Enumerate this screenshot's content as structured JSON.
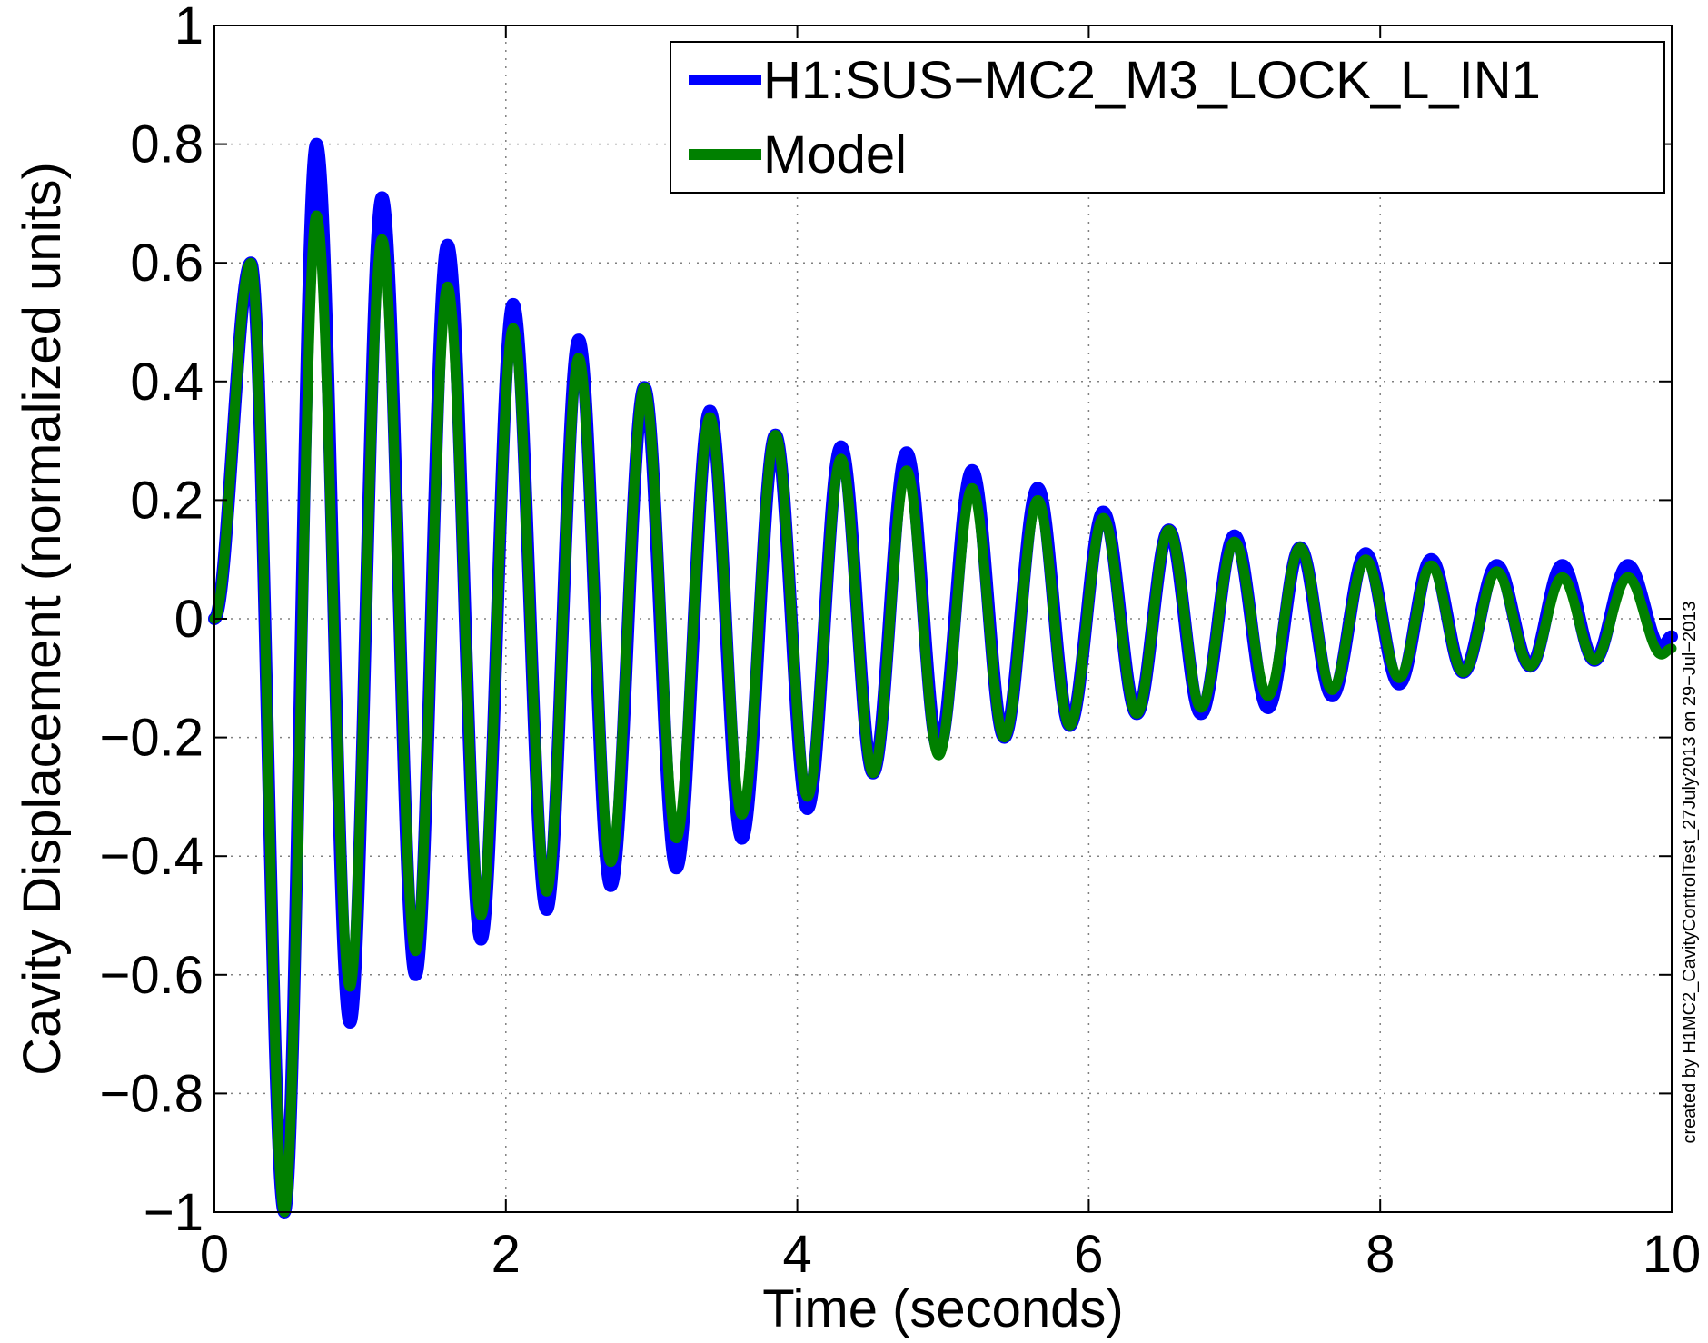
{
  "chart_data": {
    "type": "line",
    "title": "",
    "xlabel": "Time (seconds)",
    "ylabel": "Cavity Displacement (normalized units)",
    "xlim": [
      0,
      10
    ],
    "ylim": [
      -1,
      1
    ],
    "xticks": [
      0,
      2,
      4,
      6,
      8,
      10
    ],
    "xtick_labels": [
      "0",
      "2",
      "4",
      "6",
      "8",
      "10"
    ],
    "yticks": [
      1,
      0.8,
      0.6,
      0.4,
      0.2,
      0,
      -0.2,
      -0.4,
      -0.6,
      -0.8,
      -1
    ],
    "ytick_labels": [
      "1",
      "0.8",
      "0.6",
      "0.4",
      "0.2",
      "0",
      "−0.2",
      "−0.4",
      "−0.6",
      "−0.8",
      "−1"
    ],
    "grid": true,
    "legend_position": "top-right",
    "series": [
      {
        "name": "H1:SUS−MC2_M3_LOCK_L_IN1",
        "color": "#0000ff",
        "x": [
          0,
          0.25,
          0.48,
          0.7,
          0.93,
          1.15,
          1.38,
          1.6,
          1.83,
          2.05,
          2.28,
          2.5,
          2.72,
          2.95,
          3.17,
          3.4,
          3.62,
          3.85,
          4.07,
          4.3,
          4.52,
          4.75,
          4.97,
          5.2,
          5.42,
          5.65,
          5.87,
          6.1,
          6.33,
          6.55,
          6.77,
          7.0,
          7.23,
          7.45,
          7.67,
          7.9,
          8.13,
          8.35,
          8.57,
          8.8,
          9.03,
          9.25,
          9.47,
          9.7,
          9.93,
          10
        ],
        "y": [
          0,
          0.6,
          -1.0,
          0.8,
          -0.68,
          0.71,
          -0.6,
          0.63,
          -0.54,
          0.53,
          -0.49,
          0.47,
          -0.45,
          0.39,
          -0.42,
          0.35,
          -0.37,
          0.31,
          -0.32,
          0.29,
          -0.26,
          0.28,
          -0.22,
          0.25,
          -0.2,
          0.22,
          -0.18,
          0.18,
          -0.16,
          0.15,
          -0.16,
          0.14,
          -0.15,
          0.12,
          -0.13,
          0.11,
          -0.11,
          0.1,
          -0.09,
          0.09,
          -0.08,
          0.09,
          -0.07,
          0.09,
          -0.05,
          -0.03
        ]
      },
      {
        "name": "Model",
        "color": "#008000",
        "x": [
          0,
          0.25,
          0.48,
          0.7,
          0.93,
          1.15,
          1.38,
          1.6,
          1.83,
          2.05,
          2.28,
          2.5,
          2.72,
          2.95,
          3.17,
          3.4,
          3.62,
          3.85,
          4.07,
          4.3,
          4.52,
          4.75,
          4.97,
          5.2,
          5.42,
          5.65,
          5.87,
          6.1,
          6.33,
          6.55,
          6.77,
          7.0,
          7.23,
          7.45,
          7.67,
          7.9,
          8.13,
          8.35,
          8.57,
          8.8,
          9.03,
          9.25,
          9.47,
          9.7,
          9.93,
          10
        ],
        "y": [
          0,
          0.6,
          -1.0,
          0.68,
          -0.62,
          0.64,
          -0.56,
          0.56,
          -0.5,
          0.49,
          -0.46,
          0.44,
          -0.41,
          0.39,
          -0.37,
          0.34,
          -0.33,
          0.31,
          -0.3,
          0.27,
          -0.26,
          0.25,
          -0.23,
          0.22,
          -0.2,
          0.2,
          -0.18,
          0.17,
          -0.16,
          0.15,
          -0.15,
          0.13,
          -0.13,
          0.12,
          -0.12,
          0.1,
          -0.1,
          0.09,
          -0.09,
          0.08,
          -0.08,
          0.07,
          -0.07,
          0.07,
          -0.06,
          -0.05
        ]
      }
    ]
  },
  "credit_text": "created by H1MC2_CavityControlTest_27July2013 on 29−Jul−2013"
}
